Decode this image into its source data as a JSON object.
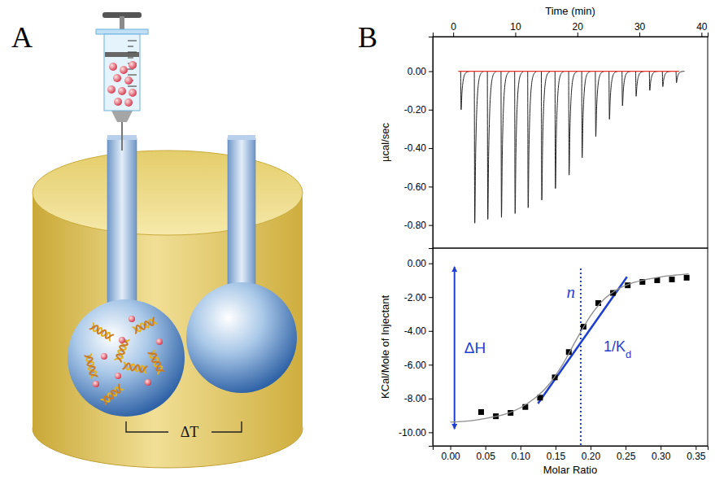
{
  "panels": [
    {
      "label": "A",
      "diagram": {
        "sensor_label": "ΔT"
      }
    },
    {
      "label": "B"
    }
  ],
  "chart_data": [
    {
      "type": "line",
      "x_label": "Time (min)",
      "y_label": "µcal/sec",
      "xlim": [
        -3.3,
        41
      ],
      "xticks": [
        0,
        10,
        20,
        30,
        40
      ],
      "ylim": [
        -0.92,
        0.18
      ],
      "yticks": [
        {
          "value": 0,
          "label": "0.00"
        },
        {
          "value": -0.2,
          "label": "-0.20"
        },
        {
          "value": -0.4,
          "label": "-0.40"
        },
        {
          "value": -0.6,
          "label": "-0.60"
        },
        {
          "value": -0.8,
          "label": "-0.80"
        }
      ],
      "series": [
        {
          "type": "peaks",
          "color": "#222222",
          "x": [
            1.2,
            3.4,
            5.5,
            7.7,
            9.9,
            12.0,
            14.2,
            16.4,
            18.6,
            20.7,
            22.9,
            25.1,
            27.2,
            29.4,
            31.6,
            33.7,
            35.9
          ],
          "values": [
            -0.2,
            -0.79,
            -0.77,
            -0.76,
            -0.74,
            -0.71,
            -0.67,
            -0.61,
            -0.54,
            -0.45,
            -0.34,
            -0.25,
            -0.18,
            -0.13,
            -0.1,
            -0.08,
            -0.06
          ]
        },
        {
          "type": "line",
          "color": "#e8322a",
          "x": [
            0.8,
            36.4
          ],
          "values": [
            0,
            0
          ]
        }
      ]
    },
    {
      "type": "scatter",
      "x_label": "Molar Ratio",
      "y_label": "KCal/Mole of Injectant",
      "xlim": [
        -0.025,
        0.367
      ],
      "xticks": [
        {
          "value": 0,
          "label": "0.00"
        },
        {
          "value": 0.05,
          "label": "0.05"
        },
        {
          "value": 0.1,
          "label": "0.10"
        },
        {
          "value": 0.15,
          "label": "0.15"
        },
        {
          "value": 0.2,
          "label": "0.20"
        },
        {
          "value": 0.25,
          "label": "0.25"
        },
        {
          "value": 0.3,
          "label": "0.30"
        },
        {
          "value": 0.35,
          "label": "0.35"
        }
      ],
      "ylim": [
        -10.8,
        0.9
      ],
      "yticks": [
        {
          "value": 0,
          "label": "0.00"
        },
        {
          "value": -2,
          "label": "-2.00"
        },
        {
          "value": -4,
          "label": "-4.00"
        },
        {
          "value": -6,
          "label": "-6.00"
        },
        {
          "value": -8,
          "label": "-8.00"
        },
        {
          "value": -10,
          "label": "-10.00"
        }
      ],
      "series": [
        {
          "type": "scatter",
          "marker": "square",
          "color": "#000000",
          "x": [
            0.044,
            0.065,
            0.086,
            0.107,
            0.128,
            0.149,
            0.169,
            0.19,
            0.211,
            0.232,
            0.253,
            0.274,
            0.295,
            0.316,
            0.337
          ],
          "values": [
            -8.8,
            -9.05,
            -8.85,
            -8.5,
            -7.95,
            -6.75,
            -5.25,
            -3.75,
            -2.35,
            -1.75,
            -1.3,
            -1.1,
            -1.0,
            -0.95,
            -0.85
          ]
        },
        {
          "type": "line",
          "color": "#8c8c8c",
          "x": [
            0,
            0.02,
            0.04,
            0.06,
            0.08,
            0.1,
            0.12,
            0.14,
            0.16,
            0.18,
            0.2,
            0.22,
            0.24,
            0.26,
            0.28,
            0.3,
            0.32,
            0.34
          ],
          "values": [
            -9.4,
            -9.35,
            -9.25,
            -9.1,
            -8.9,
            -8.55,
            -8.0,
            -7.2,
            -6.0,
            -4.5,
            -3.1,
            -2.1,
            -1.5,
            -1.15,
            -0.95,
            -0.8,
            -0.7,
            -0.62
          ]
        }
      ],
      "annotations": [
        {
          "text": "ΔH",
          "marker": "double_arrow",
          "color": "#1f3fd0",
          "x": [
            0.006,
            0.006
          ],
          "values": [
            -0.2,
            -9.8
          ]
        },
        {
          "text": "n",
          "line_style": "dotted",
          "color": "#1f3fd0",
          "x": [
            0.186,
            0.186
          ],
          "values": [
            -0.3,
            -10.8
          ]
        },
        {
          "text": "1/K",
          "subscript": "d",
          "line_style": "solid",
          "color": "#1f3fd0",
          "x": [
            0.125,
            0.252
          ],
          "values": [
            -8.3,
            -0.8
          ]
        }
      ]
    }
  ]
}
